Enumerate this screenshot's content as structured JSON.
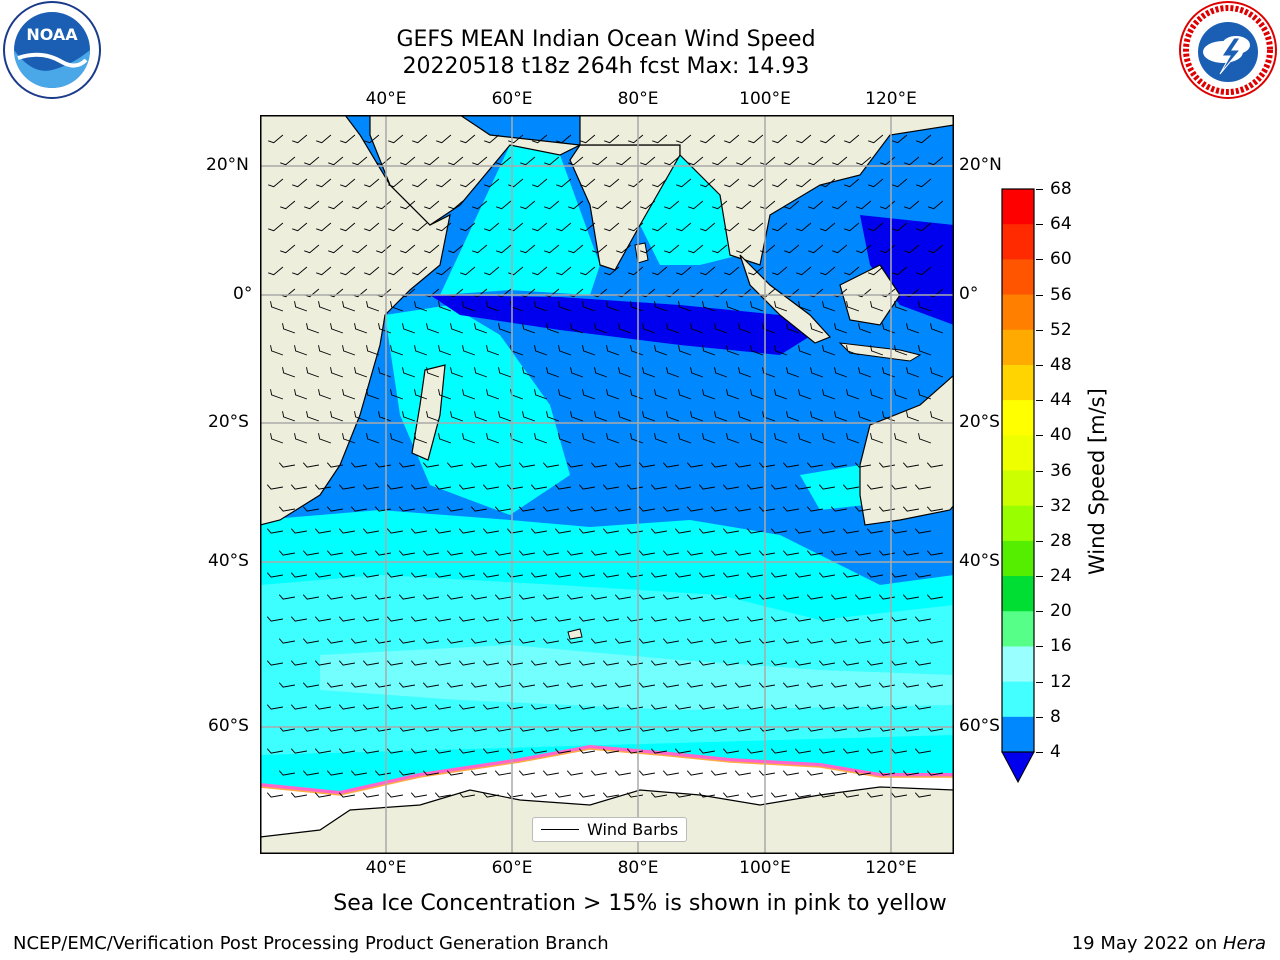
{
  "title": {
    "line1": "GEFS MEAN Indian Ocean Wind Speed",
    "line2": "20220518 t18z 264h fcst   Max: 14.93"
  },
  "map": {
    "lon_labels": [
      "40°E",
      "60°E",
      "80°E",
      "100°E",
      "120°E"
    ],
    "lat_labels_left": [
      "20°N",
      "0°",
      "20°S",
      "40°S",
      "60°S"
    ],
    "lat_labels_right": [
      "20°N",
      "0°",
      "20°S",
      "40°S",
      "60°S"
    ],
    "lon_range": [
      20,
      130
    ],
    "lat_range": [
      -73,
      28
    ],
    "legend": "Wind Barbs",
    "land_color": "#eeeedd",
    "ice_color": "#ffffff"
  },
  "colorbar": {
    "label": "Wind Speed [m/s]",
    "ticks": [
      "68",
      "64",
      "60",
      "56",
      "52",
      "48",
      "44",
      "40",
      "36",
      "32",
      "28",
      "24",
      "20",
      "16",
      "12",
      "8",
      "4"
    ],
    "colors": [
      "#ff0000",
      "#ff2a00",
      "#ff5500",
      "#ff8000",
      "#ffaa00",
      "#ffd400",
      "#ffff00",
      "#eeff00",
      "#ccff00",
      "#99ff00",
      "#55ee00",
      "#00dd33",
      "#55ff88",
      "#99ffff",
      "#44ffff",
      "#00ffff",
      "#0088ff"
    ],
    "under_color": "#0000ee"
  },
  "caption": "Sea Ice Concentration > 15% is shown in pink to yellow",
  "footer": {
    "left": "NCEP/EMC/Verification Post Processing Product Generation Branch",
    "right_prefix": "19 May 2022 on ",
    "right_italic": "Hera"
  },
  "logos": {
    "noaa": "NOAA",
    "nws": "NATIONAL WEATHER SERVICE"
  }
}
